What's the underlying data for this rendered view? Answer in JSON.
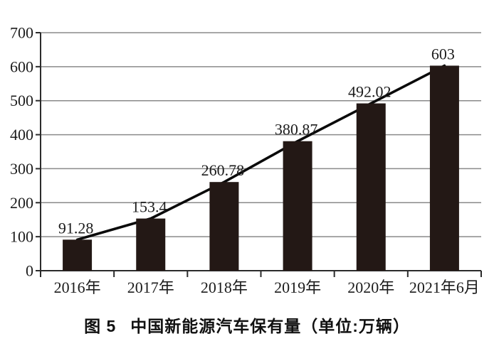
{
  "figure": {
    "caption_prefix": "图 5",
    "caption_text": "中国新能源汽车保有量（单位:万辆）"
  },
  "chart_data": {
    "type": "bar",
    "overlay_line": true,
    "title": "图5 中国新能源汽车保有量（单位:万辆）",
    "categories": [
      "2016年",
      "2017年",
      "2018年",
      "2019年",
      "2020年",
      "2021年6月"
    ],
    "values": [
      91.28,
      153.4,
      260.78,
      380.87,
      492.02,
      603
    ],
    "value_labels": [
      "91.28",
      "153.4",
      "260.78",
      "380.87",
      "492.02",
      "603"
    ],
    "xlabel": "",
    "ylabel": "",
    "ylim": [
      0,
      700
    ],
    "yticks": [
      0,
      100,
      200,
      300,
      400,
      500,
      600,
      700
    ],
    "grid": true,
    "legend_position": "none",
    "colors": {
      "bar": "#231815",
      "line": "#0a0a0a",
      "grid": "#8a8a8a",
      "axis": "#2b2b2b",
      "text": "#1c1c1c",
      "background": "#ffffff"
    }
  }
}
